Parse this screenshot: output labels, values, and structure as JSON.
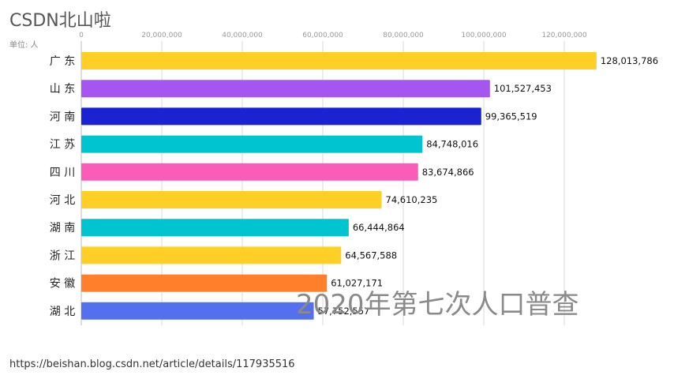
{
  "header": {
    "title": "CSDN北山啦",
    "unit": "单位: 人"
  },
  "chart_data": {
    "type": "bar",
    "orientation": "horizontal",
    "title": "CSDN北山啦",
    "subtitle": "单位: 人",
    "annotation": "2020年第七次人口普查",
    "categories": [
      "广 东",
      "山 东",
      "河 南",
      "江 苏",
      "四 川",
      "河 北",
      "湖 南",
      "浙 江",
      "安 徽",
      "湖 北"
    ],
    "values": [
      128013786,
      101527453,
      99365519,
      84748016,
      83674866,
      74610235,
      66444864,
      64567588,
      61027171,
      57752557
    ],
    "value_labels": [
      "128,013,786",
      "101,527,453",
      "99,365,519",
      "84,748,016",
      "83,674,866",
      "74,610,235",
      "66,444,864",
      "64,567,588",
      "61,027,171",
      "57,752,557"
    ],
    "colors": [
      "#FFCF26",
      "#A656F0",
      "#1A22D2",
      "#00C4CF",
      "#FA5CB8",
      "#FFCF26",
      "#00C4CF",
      "#FFCF26",
      "#FF7F2A",
      "#5570EE"
    ],
    "ticks": [
      0,
      20000000,
      40000000,
      60000000,
      80000000,
      100000000,
      120000000
    ],
    "tick_labels": [
      "0",
      "20,000,000",
      "40,000,000",
      "60,000,000",
      "80,000,000",
      "100,000,000",
      "120,000,000"
    ],
    "xlim": [
      0,
      130000000
    ],
    "grid": true,
    "axis_position": "top"
  },
  "footer": {
    "source_url": "https://beishan.blog.csdn.net/article/details/117935516"
  }
}
